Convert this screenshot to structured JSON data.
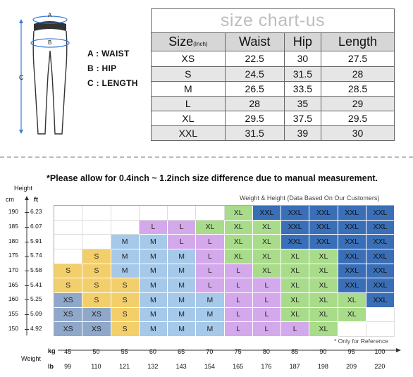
{
  "diagram": {
    "labels": {
      "a": "A",
      "b": "B",
      "c": "C"
    },
    "legend": [
      "A : WAIST",
      "B : HIP",
      "C : LENGTH"
    ]
  },
  "size_table": {
    "title": "size chart-us",
    "headers": {
      "size": "Size",
      "size_unit": "(Inch)",
      "waist": "Waist",
      "hip": "Hip",
      "length": "Length"
    },
    "rows": [
      [
        "XS",
        "22.5",
        "30",
        "27.5"
      ],
      [
        "S",
        "24.5",
        "31.5",
        "28"
      ],
      [
        "M",
        "26.5",
        "33.5",
        "28.5"
      ],
      [
        "L",
        "28",
        "35",
        "29"
      ],
      [
        "XL",
        "29.5",
        "37.5",
        "29.5"
      ],
      [
        "XXL",
        "31.5",
        "39",
        "30"
      ]
    ]
  },
  "note": "*Please allow for 0.4inch ~ 1.2inch size difference due to manual measurement.",
  "chart": {
    "title": "Weight & Height  (Data Based On Our Customers)",
    "height_label": "Height",
    "cm_label": "cm",
    "ft_label": "ft",
    "weight_label": "Weight",
    "kg_label": "kg",
    "lb_label": "lb",
    "reference_note": "* Only for Reference",
    "heights_cm": [
      "190",
      "185",
      "180",
      "175",
      "170",
      "165",
      "160",
      "155",
      "150"
    ],
    "heights_ft": [
      "6.23",
      "6.07",
      "5.91",
      "5.74",
      "5.58",
      "5.41",
      "5.25",
      "5.09",
      "4.92"
    ],
    "weights_kg": [
      "45",
      "50",
      "55",
      "60",
      "65",
      "70",
      "75",
      "80",
      "85",
      "90",
      "95",
      "100"
    ],
    "weights_lb": [
      "99",
      "110",
      "121",
      "132",
      "143",
      "154",
      "165",
      "176",
      "187",
      "198",
      "209",
      "220"
    ],
    "grid": [
      [
        "",
        "",
        "",
        "",
        "",
        "",
        "XL",
        "XXL",
        "XXL",
        "XXL",
        "XXL",
        "XXL"
      ],
      [
        "",
        "",
        "",
        "L",
        "L",
        "XL",
        "XL",
        "XL",
        "XXL",
        "XXL",
        "XXL",
        "XXL"
      ],
      [
        "",
        "",
        "M",
        "M",
        "L",
        "L",
        "XL",
        "XL",
        "XXL",
        "XXL",
        "XXL",
        "XXL"
      ],
      [
        "",
        "S",
        "M",
        "M",
        "M",
        "L",
        "XL",
        "XL",
        "XL",
        "XL",
        "XXL",
        "XXL"
      ],
      [
        "S",
        "S",
        "M",
        "M",
        "M",
        "L",
        "L",
        "XL",
        "XL",
        "XL",
        "XXL",
        "XXL"
      ],
      [
        "S",
        "S",
        "S",
        "M",
        "M",
        "L",
        "L",
        "L",
        "XL",
        "XL",
        "XXL",
        "XXL"
      ],
      [
        "XS",
        "S",
        "S",
        "M",
        "M",
        "M",
        "L",
        "L",
        "XL",
        "XL",
        "XL",
        "XXL"
      ],
      [
        "XS",
        "XS",
        "S",
        "M",
        "M",
        "M",
        "L",
        "L",
        "XL",
        "XL",
        "XL",
        ""
      ],
      [
        "XS",
        "XS",
        "S",
        "M",
        "M",
        "M",
        "L",
        "L",
        "L",
        "XL",
        "",
        ""
      ]
    ]
  }
}
